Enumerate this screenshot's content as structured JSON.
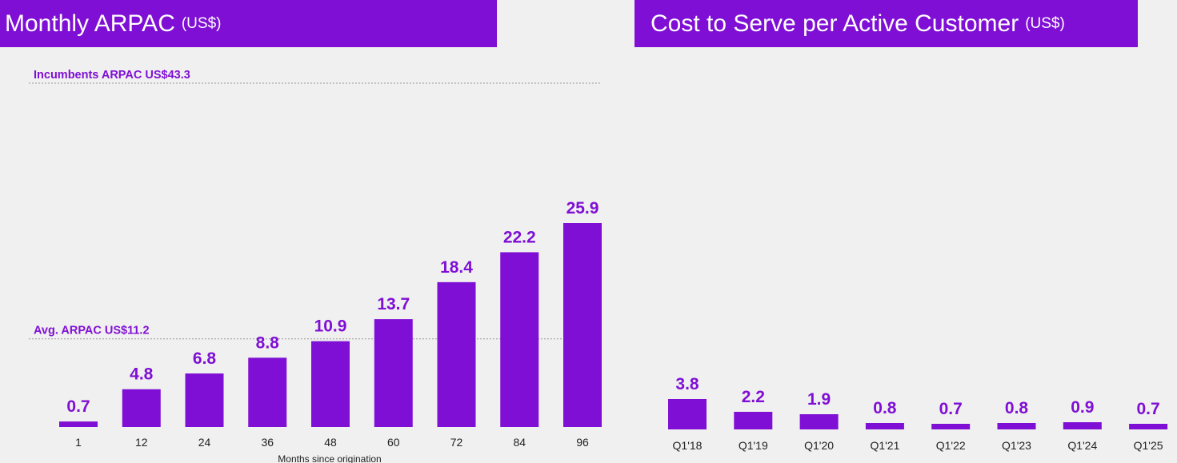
{
  "colors": {
    "accent": "#7f0fd4",
    "background": "#f0f0f0",
    "reference_line": "#9a9a9a"
  },
  "chart_data": [
    {
      "type": "bar",
      "title": "Monthly ARPAC",
      "unit": "(US$)",
      "xlabel": "Months since origination",
      "ylabel": "",
      "categories": [
        "1",
        "12",
        "24",
        "36",
        "48",
        "60",
        "72",
        "84",
        "96"
      ],
      "values": [
        0.7,
        4.8,
        6.8,
        8.8,
        10.9,
        13.7,
        18.4,
        22.2,
        25.9
      ],
      "value_labels": [
        "0.7",
        "4.8",
        "6.8",
        "8.8",
        "10.9",
        "13.7",
        "18.4",
        "22.2",
        "25.9"
      ],
      "reference_lines": [
        {
          "label": "Incumbents ARPAC US$43.3",
          "value": 43.3
        },
        {
          "label": "Avg. ARPAC US$11.2",
          "value": 11.2
        }
      ],
      "grid": false
    },
    {
      "type": "bar",
      "title": "Cost to Serve per Active Customer",
      "unit": "(US$)",
      "xlabel": "",
      "ylabel": "",
      "categories": [
        "Q1'18",
        "Q1'19",
        "Q1'20",
        "Q1'21",
        "Q1'22",
        "Q1'23",
        "Q1'24",
        "Q1'25"
      ],
      "values": [
        3.8,
        2.2,
        1.9,
        0.8,
        0.7,
        0.8,
        0.9,
        0.7
      ],
      "value_labels": [
        "3.8",
        "2.2",
        "1.9",
        "0.8",
        "0.7",
        "0.8",
        "0.9",
        "0.7"
      ],
      "grid": false
    }
  ]
}
